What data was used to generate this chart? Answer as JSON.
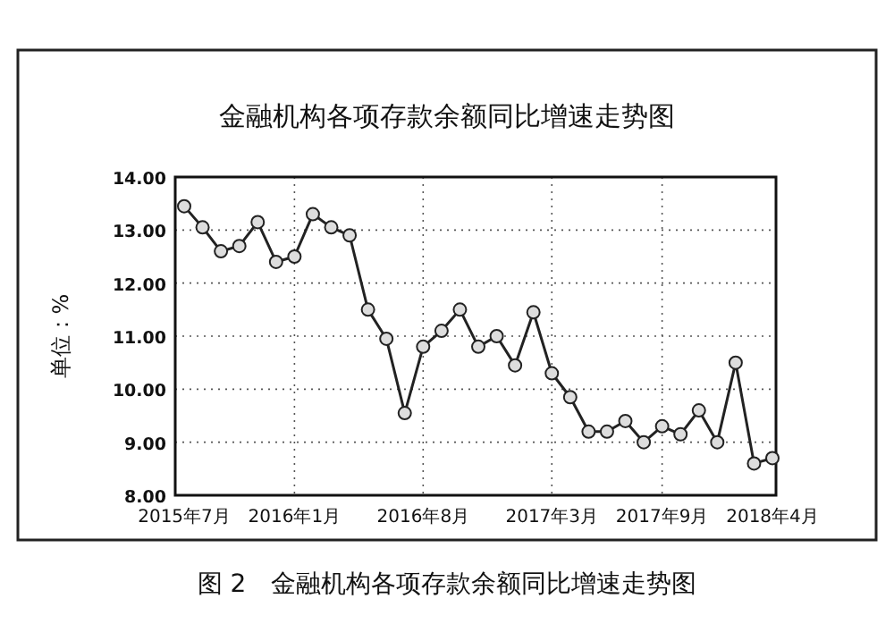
{
  "chart_data": {
    "type": "line",
    "title": "金融机构各项存款余额同比增速走势图",
    "ylabel": "单位：%",
    "annotations": [
      "图 2　金融机构各项存款余额同比增速走势图"
    ],
    "categories": [
      "2015年7月",
      null,
      null,
      null,
      null,
      null,
      "2016年1月",
      null,
      null,
      null,
      null,
      null,
      null,
      "2016年8月",
      null,
      null,
      null,
      null,
      null,
      null,
      "2017年3月",
      null,
      null,
      null,
      null,
      null,
      "2017年9月",
      null,
      null,
      null,
      null,
      null,
      "2018年4月"
    ],
    "series": [
      {
        "color": "#222222",
        "values": [
          13.45,
          13.05,
          12.6,
          12.7,
          13.15,
          12.4,
          12.5,
          13.3,
          13.05,
          12.9,
          11.5,
          10.95,
          9.55,
          10.8,
          11.1,
          11.5,
          10.8,
          11.0,
          10.45,
          11.45,
          10.3,
          9.85,
          9.2,
          9.2,
          9.4,
          9.0,
          9.3,
          9.15,
          9.6,
          9.0,
          10.5,
          8.6,
          8.7
        ]
      }
    ],
    "ylim": [
      8,
      14
    ],
    "yticks": [
      {
        "value": 8,
        "label": "8.00"
      },
      {
        "value": 9,
        "label": "9.00"
      },
      {
        "value": 10,
        "label": "10.00"
      },
      {
        "value": 11,
        "label": "11.00"
      },
      {
        "value": 12,
        "label": "12.00"
      },
      {
        "value": 13,
        "label": "13.00"
      },
      {
        "value": 14,
        "label": "14.00"
      }
    ],
    "grid": true,
    "marker": "circle",
    "line_style": "solid"
  }
}
